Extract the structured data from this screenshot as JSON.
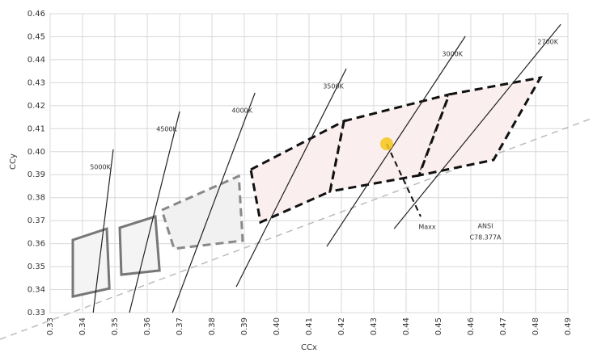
{
  "chart_data": {
    "type": "line",
    "xlabel": "CCx",
    "ylabel": "CCy",
    "xlim": [
      0.33,
      0.49
    ],
    "ylim": [
      0.33,
      0.46
    ],
    "xticks": [
      0.33,
      0.34,
      0.35,
      0.36,
      0.37,
      0.38,
      0.39,
      {
        "value": 0.4,
        "label": "0.40"
      },
      0.41,
      0.42,
      0.43,
      0.44,
      0.45,
      0.46,
      0.47,
      0.48,
      0.49
    ],
    "yticks": [
      0.33,
      0.34,
      0.35,
      0.36,
      0.37,
      0.38,
      0.39,
      {
        "value": 0.4,
        "label": "0.40"
      },
      0.41,
      0.42,
      0.43,
      0.44,
      0.45,
      0.46
    ],
    "grid": true,
    "series": [
      {
        "name": "5000K",
        "color": "#222222",
        "x": [
          0.3433,
          0.3495
        ],
        "values": [
          0.33,
          0.401
        ]
      },
      {
        "name": "4500K",
        "color": "#222222",
        "x": [
          0.3545,
          0.37
        ],
        "values": [
          0.33,
          0.4175
        ]
      },
      {
        "name": "4000K",
        "color": "#222222",
        "x": [
          0.3678,
          0.3933
        ],
        "values": [
          0.33,
          0.4256
        ]
      },
      {
        "name": "3500K",
        "color": "#222222",
        "x": [
          0.3875,
          0.4215
        ],
        "values": [
          0.3412,
          0.4361
        ]
      },
      {
        "name": "3000K",
        "color": "#222222",
        "x": [
          0.4155,
          0.4583
        ],
        "values": [
          0.3588,
          0.4502
        ]
      },
      {
        "name": "2700K",
        "color": "#222222",
        "x": [
          0.4363,
          0.4878
        ],
        "values": [
          0.3665,
          0.4554
        ]
      }
    ],
    "regions": [
      {
        "x": [
          0.337,
          0.3475,
          0.3483,
          0.337
        ],
        "values": [
          0.3616,
          0.3665,
          0.3405,
          0.337
        ],
        "color": "#777777",
        "fill": "#f4f4f4",
        "dashed": false
      },
      {
        "x": [
          0.3515,
          0.3625,
          0.3638,
          0.352
        ],
        "values": [
          0.3669,
          0.3718,
          0.3483,
          0.3465
        ],
        "color": "#777777",
        "fill": "#f4f4f4",
        "dashed": false
      },
      {
        "x": [
          0.3645,
          0.3883,
          0.3895,
          0.3683
        ],
        "values": [
          0.3746,
          0.3894,
          0.3613,
          0.3578
        ],
        "color": "#888888",
        "fill": "#f1f1f1",
        "dashed": true
      },
      {
        "x": [
          0.392,
          0.4208,
          0.4165,
          0.395
        ],
        "values": [
          0.3922,
          0.4133,
          0.3827,
          0.3693
        ],
        "color": "#111111",
        "fill": "#fbeeee",
        "dashed": true
      },
      {
        "x": [
          0.4208,
          0.4533,
          0.444,
          0.4165
        ],
        "values": [
          0.4133,
          0.4249,
          0.3897,
          0.3827
        ],
        "color": "#111111",
        "fill": "#fbeeee",
        "dashed": true
      },
      {
        "x": [
          0.4533,
          0.4815,
          0.467,
          0.444
        ],
        "values": [
          0.4249,
          0.4322,
          0.3964,
          0.3897
        ],
        "color": "#111111",
        "fill": "#fbeeee",
        "dashed": true
      }
    ],
    "points": [
      {
        "name": "Maxx",
        "x": 0.434,
        "y": 0.4034,
        "color": "#f5c518"
      }
    ],
    "annotation": [
      "ANSI",
      "C78.377A"
    ]
  }
}
